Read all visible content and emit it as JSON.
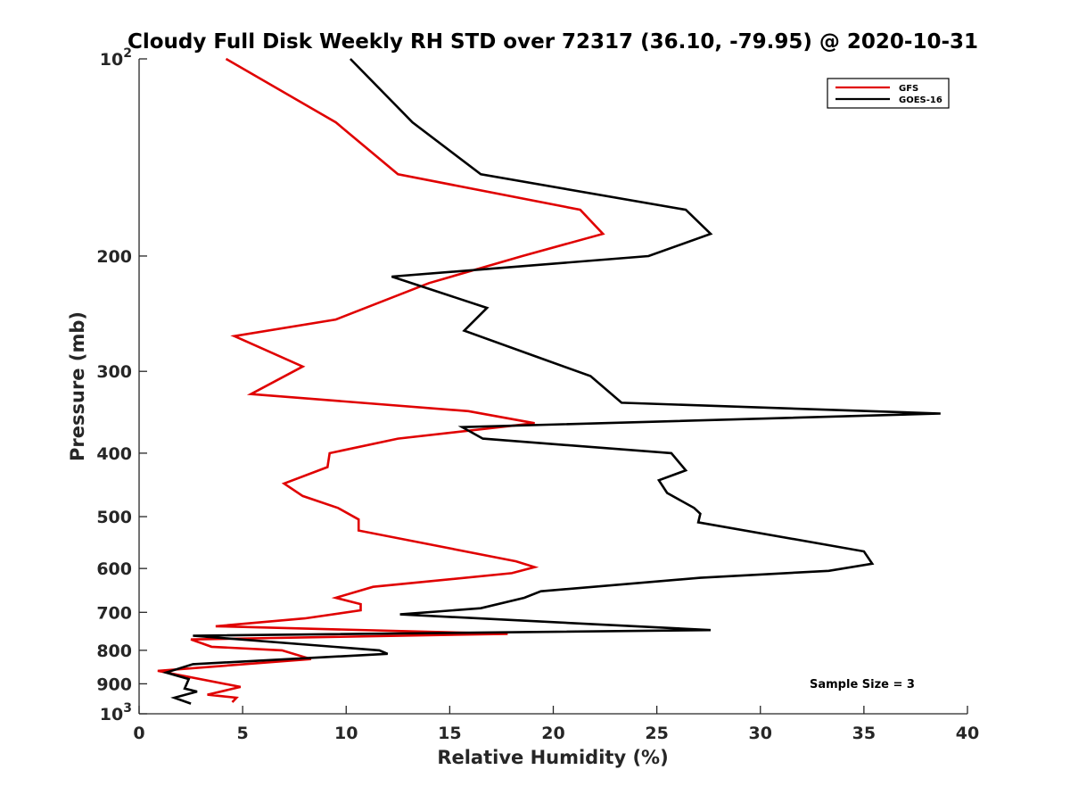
{
  "chart_data": {
    "type": "line",
    "title": "Cloudy Full Disk Weekly RH STD over 72317 (36.10, -79.95) @ 2020-10-31",
    "xlabel": "Relative Humidity (%)",
    "ylabel": "Pressure (mb)",
    "xlim": [
      0,
      40
    ],
    "ylim": [
      100,
      1000
    ],
    "y_scale": "log",
    "y_reversed": true,
    "grid": false,
    "legend_position": "top-right",
    "x_ticks": [
      0,
      5,
      10,
      15,
      20,
      25,
      30,
      35,
      40
    ],
    "x_tick_labels": [
      "0",
      "5",
      "10",
      "15",
      "20",
      "25",
      "30",
      "35",
      "40"
    ],
    "y_ticks": [
      100,
      200,
      300,
      400,
      500,
      600,
      700,
      800,
      900,
      1000
    ],
    "y_tick_labels": [
      {
        "base": "10",
        "exp": "2"
      },
      {
        "base": "200",
        "exp": ""
      },
      {
        "base": "300",
        "exp": ""
      },
      {
        "base": "400",
        "exp": ""
      },
      {
        "base": "500",
        "exp": ""
      },
      {
        "base": "600",
        "exp": ""
      },
      {
        "base": "700",
        "exp": ""
      },
      {
        "base": "800",
        "exp": ""
      },
      {
        "base": "900",
        "exp": ""
      },
      {
        "base": "10",
        "exp": "3"
      }
    ],
    "series": [
      {
        "name": "GFS",
        "color": "#e00000",
        "points": [
          [
            4.2,
            100
          ],
          [
            9.5,
            125
          ],
          [
            12.5,
            150
          ],
          [
            21.3,
            170
          ],
          [
            22.4,
            185
          ],
          [
            18.5,
            200
          ],
          [
            14.0,
            220
          ],
          [
            9.5,
            250
          ],
          [
            4.6,
            265
          ],
          [
            7.9,
            295
          ],
          [
            5.4,
            325
          ],
          [
            15.9,
            345
          ],
          [
            19.1,
            360
          ],
          [
            12.5,
            380
          ],
          [
            9.2,
            400
          ],
          [
            9.1,
            420
          ],
          [
            7.0,
            445
          ],
          [
            7.9,
            465
          ],
          [
            9.6,
            485
          ],
          [
            10.6,
            505
          ],
          [
            10.6,
            525
          ],
          [
            18.2,
            585
          ],
          [
            19.1,
            597
          ],
          [
            18.0,
            610
          ],
          [
            11.3,
            640
          ],
          [
            9.5,
            665
          ],
          [
            10.7,
            680
          ],
          [
            10.7,
            695
          ],
          [
            8.0,
            715
          ],
          [
            3.7,
            735
          ],
          [
            17.8,
            755
          ],
          [
            2.5,
            770
          ],
          [
            3.5,
            790
          ],
          [
            6.9,
            800
          ],
          [
            8.3,
            825
          ],
          [
            0.9,
            860
          ],
          [
            4.9,
            910
          ],
          [
            3.3,
            935
          ],
          [
            4.7,
            945
          ],
          [
            4.5,
            960
          ]
        ]
      },
      {
        "name": "GOES-16",
        "color": "#000000",
        "points": [
          [
            10.2,
            100
          ],
          [
            13.2,
            125
          ],
          [
            16.5,
            150
          ],
          [
            26.4,
            170
          ],
          [
            27.6,
            185
          ],
          [
            24.6,
            200
          ],
          [
            12.2,
            215
          ],
          [
            16.8,
            240
          ],
          [
            15.7,
            260
          ],
          [
            19.2,
            285
          ],
          [
            21.8,
            305
          ],
          [
            23.3,
            335
          ],
          [
            38.7,
            348
          ],
          [
            15.6,
            365
          ],
          [
            16.6,
            380
          ],
          [
            25.7,
            400
          ],
          [
            26.4,
            425
          ],
          [
            25.1,
            440
          ],
          [
            25.5,
            460
          ],
          [
            26.8,
            485
          ],
          [
            27.1,
            495
          ],
          [
            27.0,
            510
          ],
          [
            35.0,
            565
          ],
          [
            35.4,
            590
          ],
          [
            33.3,
            605
          ],
          [
            27.1,
            620
          ],
          [
            19.4,
            650
          ],
          [
            18.6,
            665
          ],
          [
            16.5,
            690
          ],
          [
            12.6,
            705
          ],
          [
            27.6,
            745
          ],
          [
            2.6,
            760
          ],
          [
            11.6,
            800
          ],
          [
            12.0,
            810
          ],
          [
            2.6,
            840
          ],
          [
            1.3,
            865
          ],
          [
            2.4,
            885
          ],
          [
            2.2,
            915
          ],
          [
            2.8,
            925
          ],
          [
            1.7,
            945
          ],
          [
            2.5,
            965
          ]
        ]
      }
    ],
    "annotation": "Sample Size = 3"
  }
}
